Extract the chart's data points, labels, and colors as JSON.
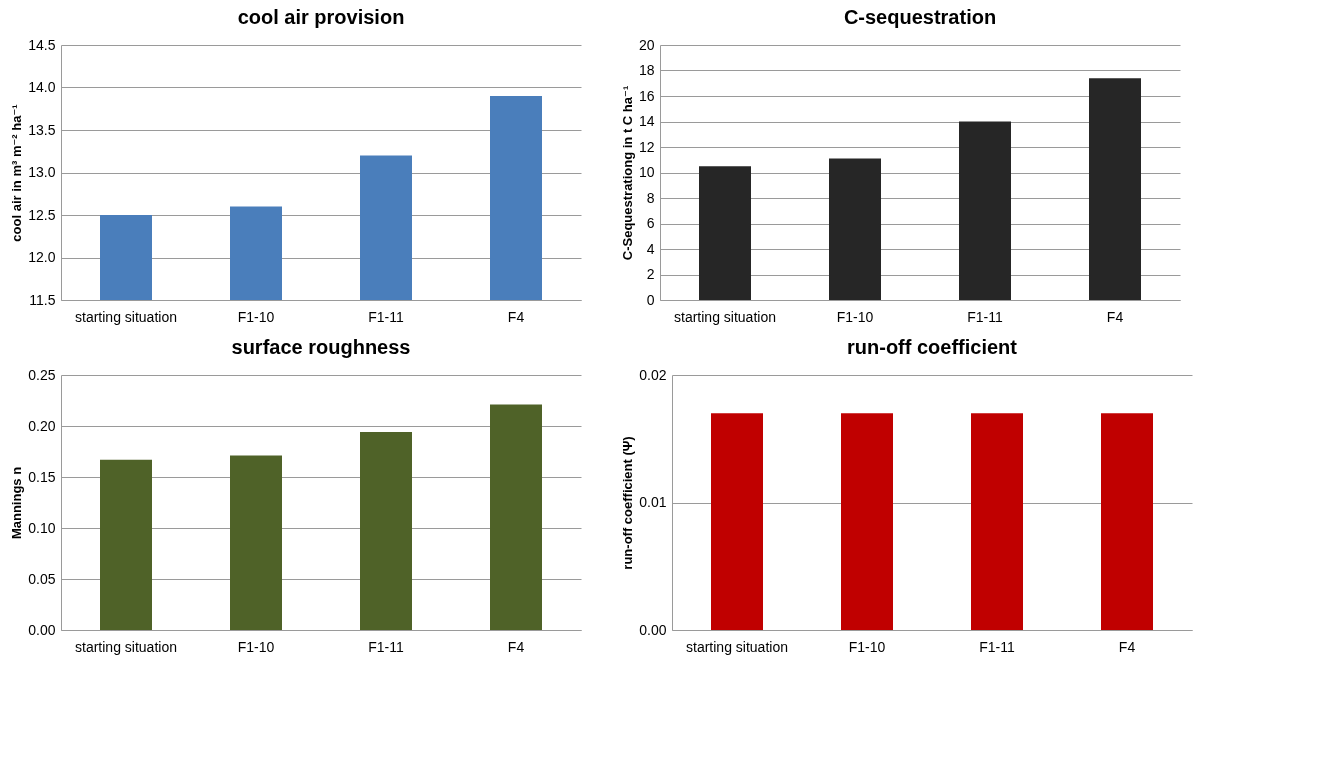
{
  "chart_data": [
    {
      "type": "bar",
      "title": "cool air provision",
      "ylabel": "cool air in m³ m⁻² ha⁻¹",
      "categories": [
        "starting situation",
        "F1-10",
        "F1-11",
        "F4"
      ],
      "values": [
        12.5,
        12.6,
        13.2,
        13.9
      ],
      "color": "#4a7ebb",
      "ylim": [
        11.5,
        14.5
      ],
      "yticks": [
        11.5,
        {
          "value": 12,
          "label": "12.0"
        },
        12.5,
        {
          "value": 13,
          "label": "13.0"
        },
        13.5,
        {
          "value": 14,
          "label": "14.0"
        },
        14.5
      ],
      "grid": "y"
    },
    {
      "type": "bar",
      "title": "C-sequestration",
      "ylabel": "C-Sequestrationg in t C ha⁻¹",
      "categories": [
        "starting situation",
        "F1-10",
        "F1-11",
        "F4"
      ],
      "values": [
        10.5,
        11.1,
        14.0,
        17.4
      ],
      "color": "#262626",
      "ylim": [
        0,
        20
      ],
      "yticks": [
        0,
        2,
        4,
        6,
        8,
        10,
        12,
        14,
        16,
        18,
        20
      ],
      "grid": "y"
    },
    {
      "type": "bar",
      "title": "surface roughness",
      "ylabel": "Mannings n",
      "categories": [
        "starting situation",
        "F1-10",
        "F1-11",
        "F4"
      ],
      "values": [
        0.167,
        0.171,
        0.194,
        0.221
      ],
      "color": "#4f6228",
      "ylim": [
        0,
        0.25
      ],
      "yticks": [
        {
          "value": 0,
          "label": "0.00"
        },
        0.05,
        {
          "value": 0.1,
          "label": "0.10"
        },
        0.15,
        {
          "value": 0.2,
          "label": "0.20"
        },
        0.25
      ],
      "grid": "y"
    },
    {
      "type": "bar",
      "title": "run-off coefficient",
      "ylabel": "run-off coefficient (Ψ)",
      "categories": [
        "starting situation",
        "F1-10",
        "F1-11",
        "F4"
      ],
      "values": [
        0.017,
        0.017,
        0.017,
        0.017
      ],
      "color": "#c00000",
      "ylim": [
        0,
        0.02
      ],
      "yticks": [
        {
          "value": 0,
          "label": "0.00"
        },
        0.01,
        0.02
      ],
      "grid": "y"
    }
  ]
}
